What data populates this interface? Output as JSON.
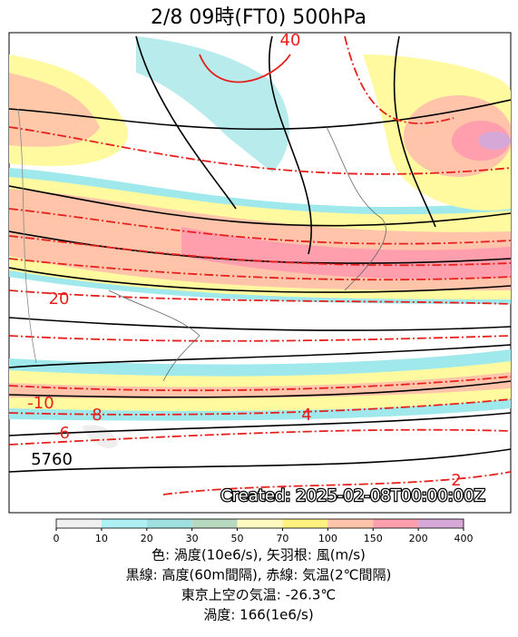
{
  "header": {
    "title": "2/8  09時(FT0)     500hPa"
  },
  "map": {
    "labels": [
      "40",
      "20",
      "-10",
      "8",
      "-6",
      "4",
      "2",
      "5760"
    ],
    "created": "Created: 2025-02-08T00:00:00Z"
  },
  "colorbar": {
    "ticks": [
      0,
      10,
      20,
      30,
      50,
      70,
      100,
      150,
      200,
      400
    ],
    "colors": [
      "#f0f0f0",
      "#aef0f4",
      "#9fe0e0",
      "#b8d8c0",
      "#fffbc0",
      "#fff080",
      "#ffc4aa",
      "#ff9fae",
      "#d6a8d8"
    ]
  },
  "caption": [
    "色: 渦度(10e6/s), 矢羽根: 風(m/s)",
    "黒線: 高度(60m間隔), 赤線: 気温(2℃間隔)",
    "東京上空の気温: -26.3℃",
    "渦度: 166(1e6/s)"
  ]
}
